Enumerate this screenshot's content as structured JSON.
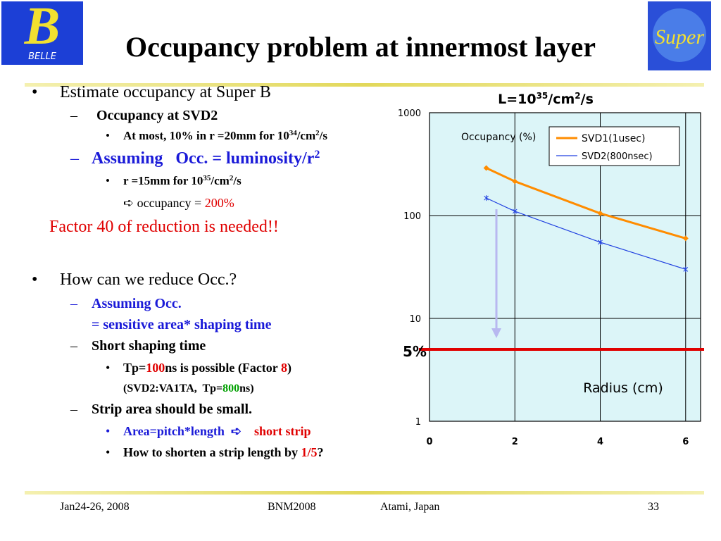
{
  "logos": {
    "left": {
      "mark": "B",
      "text": "BELLE"
    },
    "right": {
      "text": "Super"
    }
  },
  "title": "Occupancy problem at innermost layer",
  "body": [
    {
      "marker": "•",
      "runs": [
        {
          "text": "Estimate occupancy at Super B"
        }
      ]
    },
    {
      "marker": "–",
      "runs": [
        {
          "text": "Occupancy at SVD2"
        }
      ]
    },
    {
      "marker": "•",
      "runs": [
        {
          "text": "At most, 10% in r =20mm for 10"
        },
        {
          "text": "34",
          "sup": true
        },
        {
          "text": "/cm"
        },
        {
          "text": "2",
          "sup": true
        },
        {
          "text": "/s"
        }
      ]
    },
    {
      "marker": "–",
      "color": "#1a1ad8",
      "runs": [
        {
          "text": "Assuming   Occ. = luminosity/r"
        },
        {
          "text": "2",
          "sup": true
        }
      ]
    },
    {
      "marker": "•",
      "runs": [
        {
          "text": "r =15mm for 10"
        },
        {
          "text": "35",
          "sup": true
        },
        {
          "text": "/cm"
        },
        {
          "text": "2",
          "sup": true
        },
        {
          "text": "/s"
        }
      ]
    },
    {
      "runs": [
        {
          "text": "➪ occupancy = "
        },
        {
          "text": "200%",
          "color": "#e00000"
        }
      ]
    },
    {
      "color": "#e00000",
      "runs": [
        {
          "text": "Factor 40 of reduction is needed!!"
        }
      ]
    },
    {
      "marker": "•",
      "runs": [
        {
          "text": "How can we reduce Occ.?"
        }
      ]
    },
    {
      "marker": "–",
      "color": "#1a1ad8",
      "runs": [
        {
          "text": "Assuming Occ."
        }
      ]
    },
    {
      "color": "#1a1ad8",
      "runs": [
        {
          "text": "= sensitive area* shaping time"
        }
      ]
    },
    {
      "marker": "–",
      "runs": [
        {
          "text": "Short shaping time"
        }
      ]
    },
    {
      "marker": "•",
      "runs": [
        {
          "text": "Tp="
        },
        {
          "text": "100",
          "color": "#e00000"
        },
        {
          "text": "ns is possible (Factor "
        },
        {
          "text": "8",
          "color": "#e00000"
        },
        {
          "text": ")"
        }
      ]
    },
    {
      "runs": [
        {
          "text": "(SVD2:VA1TA,  Tp="
        },
        {
          "text": "800",
          "color": "#00a000"
        },
        {
          "text": "ns)"
        }
      ]
    },
    {
      "marker": "–",
      "runs": [
        {
          "text": "Strip area should be small."
        }
      ]
    },
    {
      "marker": "•",
      "color": "#1a1ad8",
      "runs": [
        {
          "text": "Area=pitch*length  ➪    "
        },
        {
          "text": "short strip",
          "color": "#e00000"
        }
      ]
    },
    {
      "marker": "•",
      "runs": [
        {
          "text": "How to shorten a strip length by "
        },
        {
          "text": "1/5",
          "color": "#e00000"
        },
        {
          "text": "?"
        }
      ]
    }
  ],
  "footer": {
    "date": "Jan24-26, 2008",
    "event": "BNM2008",
    "place": "Atami, Japan",
    "page": "33"
  },
  "chart_data": {
    "type": "line",
    "title": [
      "L=10",
      "35",
      "/cm",
      "2",
      "/s"
    ],
    "ylabel": "Occupancy (%)",
    "xlabel": "Radius (cm)",
    "x": [
      1.33,
      2,
      4,
      6
    ],
    "series": [
      {
        "name": "SVD1(1usec)",
        "color": "#ff8c00",
        "marker": "diamond",
        "values": [
          290,
          215,
          105,
          60
        ]
      },
      {
        "name": "SVD2(800nsec)",
        "color": "#2040e0",
        "marker": "star",
        "values": [
          148,
          110,
          55,
          30
        ]
      }
    ],
    "xlim": [
      0,
      6.35
    ],
    "xticks": [
      0,
      2,
      4,
      6
    ],
    "ylim": [
      1,
      1000
    ],
    "yticks": [
      1,
      10,
      100,
      1000
    ],
    "log_y": true,
    "grid": true,
    "hline": {
      "value": 5,
      "label": "5%",
      "color": "#e00000"
    }
  }
}
